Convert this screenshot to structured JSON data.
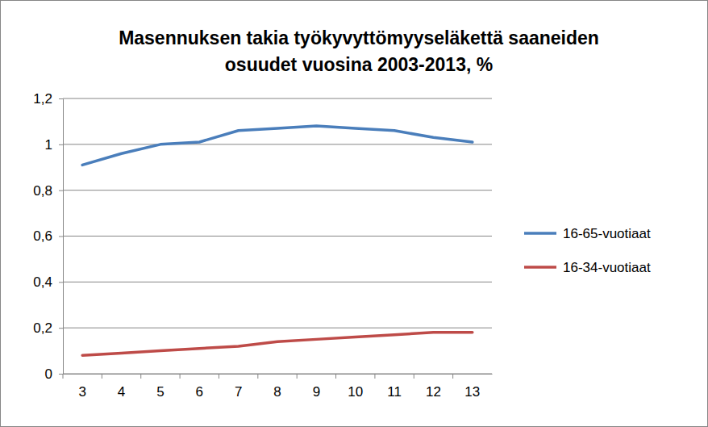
{
  "chart_data": {
    "type": "line",
    "title": [
      "Masennuksen takia työkyvyttömyyseläkettä saaneiden",
      "osuudet vuosina 2003-2013, %"
    ],
    "categories": [
      "3",
      "4",
      "5",
      "6",
      "7",
      "8",
      "9",
      "10",
      "11",
      "12",
      "13"
    ],
    "series": [
      {
        "name": "16-65-vuotiaat",
        "color": "#4a7ebb",
        "values": [
          0.91,
          0.96,
          1.0,
          1.01,
          1.06,
          1.07,
          1.08,
          1.07,
          1.06,
          1.03,
          1.01
        ]
      },
      {
        "name": "16-34-vuotiaat",
        "color": "#be4b48",
        "values": [
          0.08,
          0.09,
          0.1,
          0.11,
          0.12,
          0.14,
          0.15,
          0.16,
          0.17,
          0.18,
          0.18
        ]
      }
    ],
    "ylim": [
      0,
      1.2
    ],
    "yticks": [
      0,
      {
        "value": 0.2,
        "label": "0,2"
      },
      {
        "value": 0.4,
        "label": "0,4"
      },
      {
        "value": 0.6,
        "label": "0,6"
      },
      {
        "value": 0.8,
        "label": "0,8"
      },
      1,
      {
        "value": 1.2,
        "label": "1,2"
      }
    ],
    "grid": true,
    "legend": "right",
    "marker": "none"
  }
}
